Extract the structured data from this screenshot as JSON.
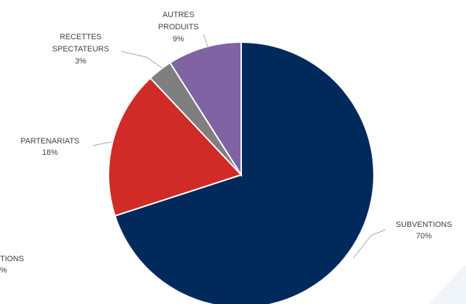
{
  "chart_data": {
    "type": "pie",
    "title": "",
    "slices": [
      {
        "label": "SUBVENTIONS",
        "value": 70,
        "value_label": "70%",
        "color": "#002a5c"
      },
      {
        "label": "PARTENARIATS",
        "value": 18,
        "value_label": "18%",
        "color": "#d02b27"
      },
      {
        "label": "RECETTES SPECTATEURS",
        "value": 3,
        "value_label": "3%",
        "color": "#7f7f7f"
      },
      {
        "label": "AUTRES PRODUITS",
        "value": 9,
        "value_label": "9%",
        "color": "#7f63a3"
      }
    ],
    "partial_label": {
      "text": "TIONS",
      "value_label": "%"
    },
    "legend": "none",
    "data_labels": "outside-with-leader-lines"
  },
  "decor": {
    "accent_color": "#cfe2f3"
  }
}
